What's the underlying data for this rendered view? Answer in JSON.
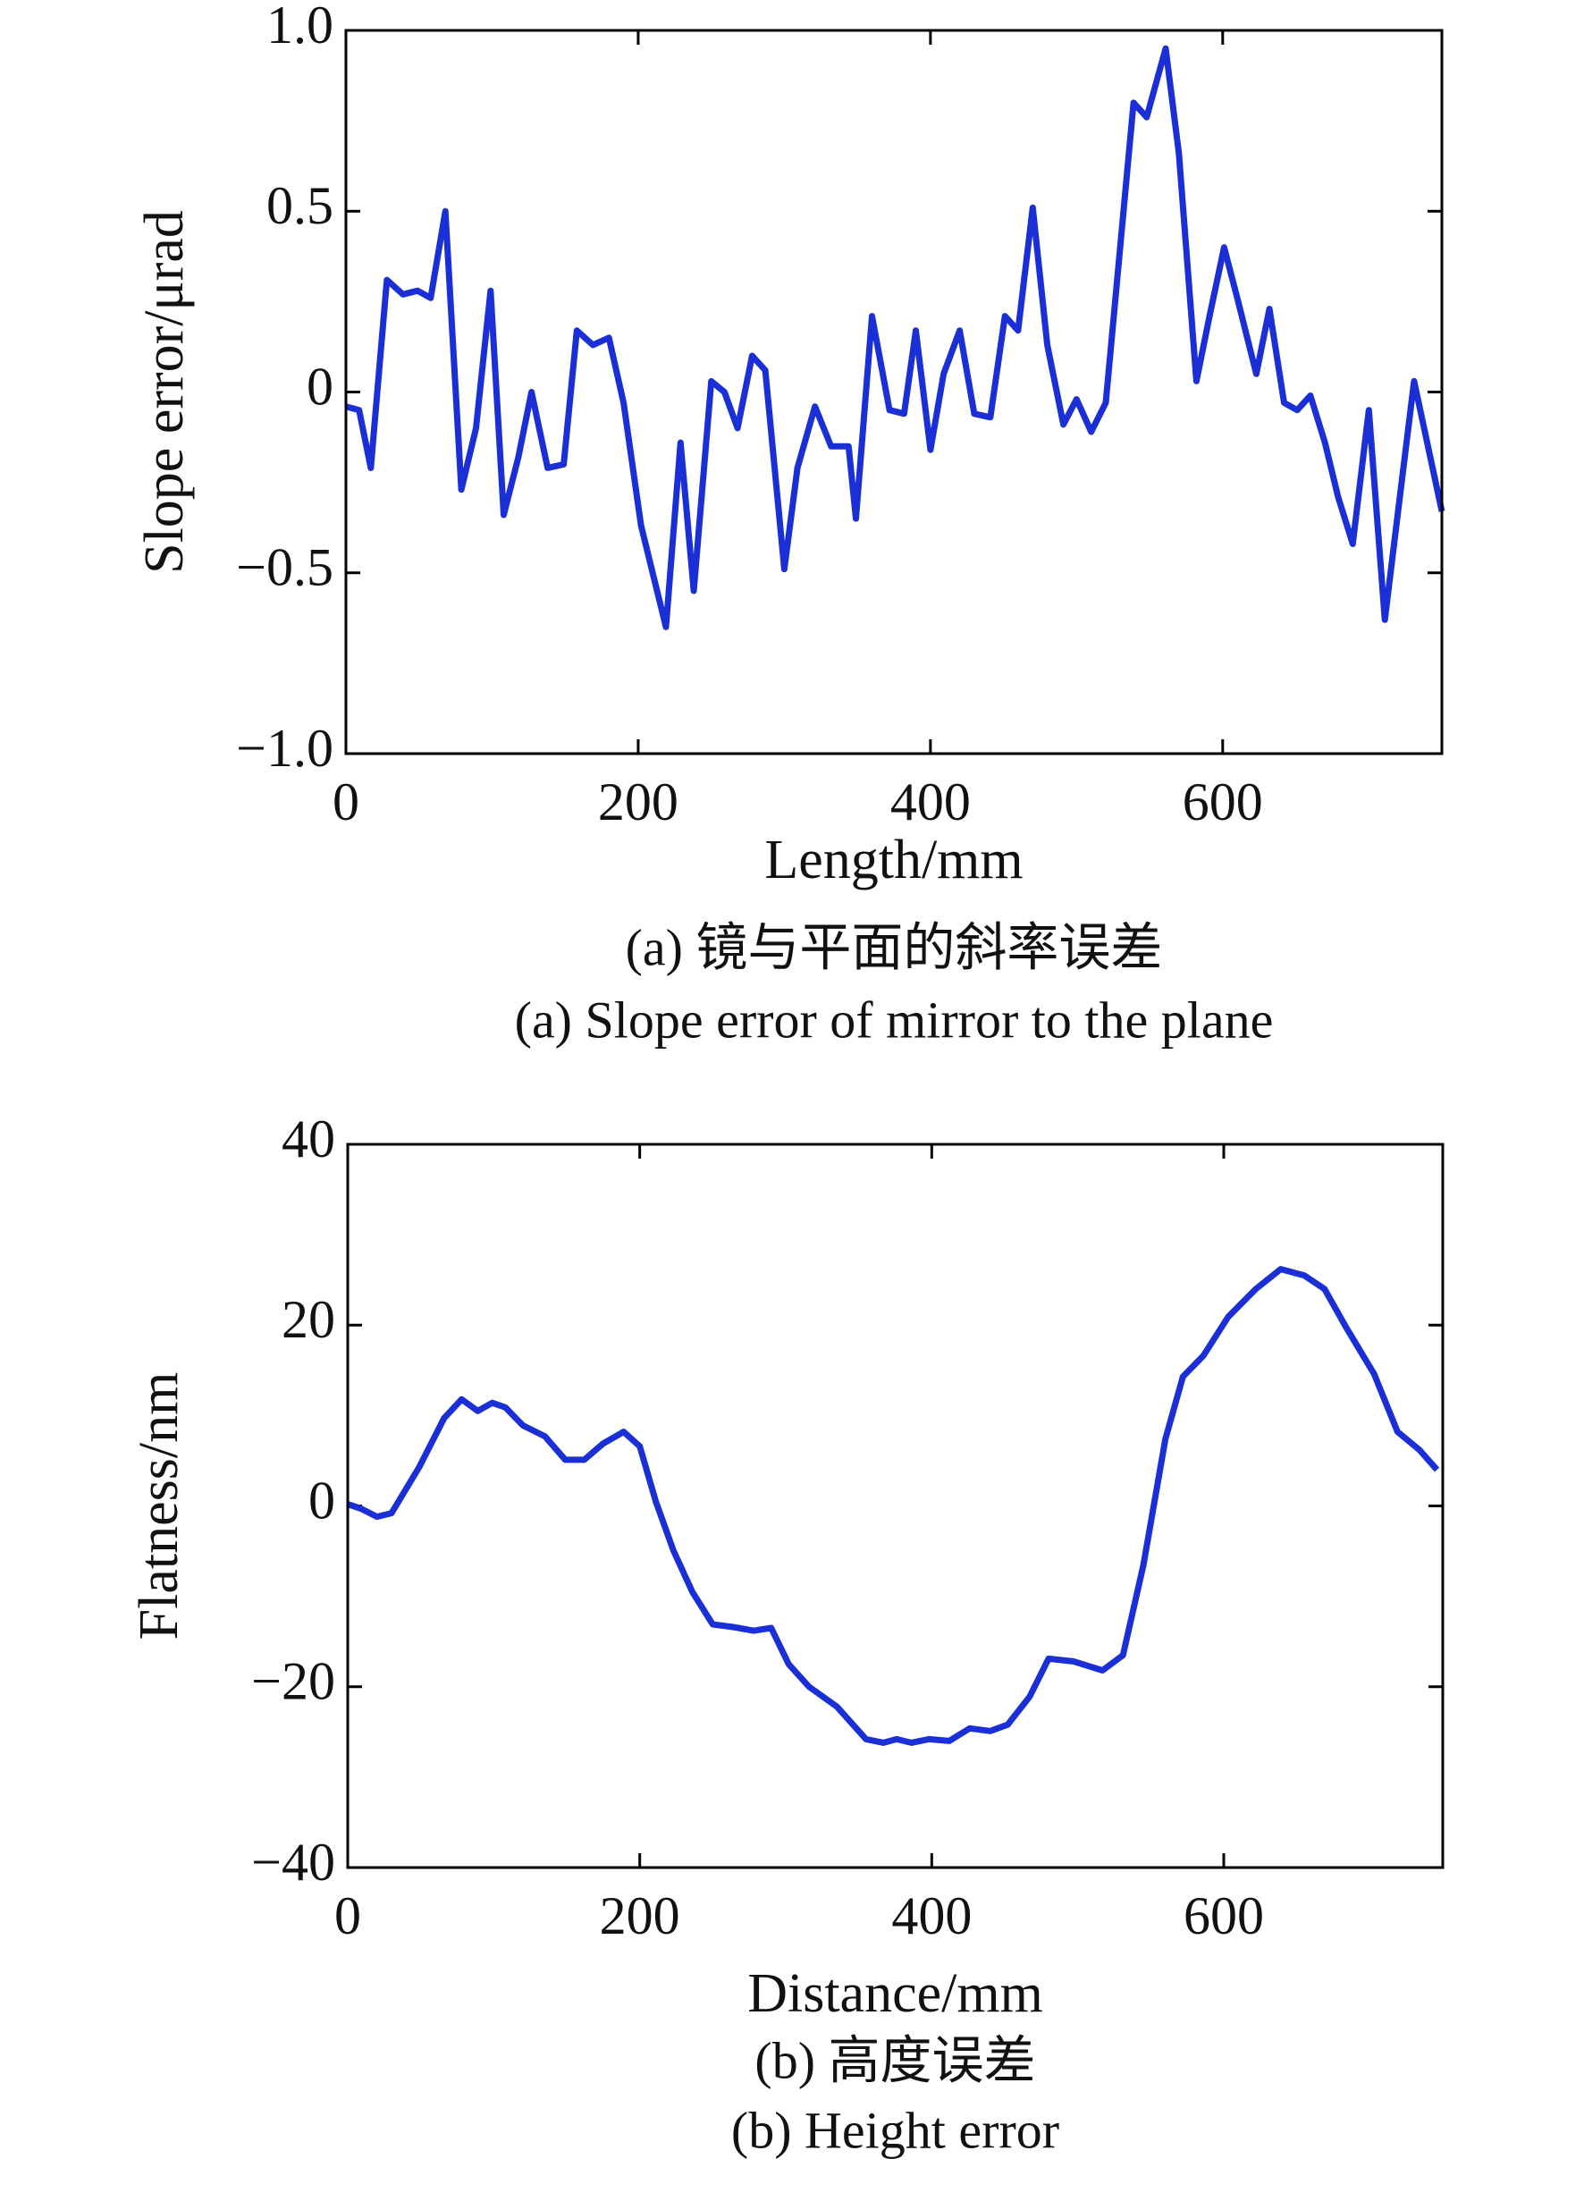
{
  "chart_data": [
    {
      "type": "line",
      "xlabel": "Length/mm",
      "ylabel": "Slope error/μrad",
      "captions": [
        "(a) 镜与平面的斜率误差",
        "(a) Slope error of mirror to the plane"
      ],
      "color": "#1a2fd6",
      "x": [
        0,
        9,
        17,
        28,
        39,
        49,
        58,
        68,
        79,
        89,
        99,
        108,
        118,
        127,
        138,
        149,
        158,
        169,
        180,
        190,
        202,
        219,
        229,
        238,
        250,
        259,
        268,
        278,
        287,
        300,
        309,
        321,
        332,
        344,
        349,
        360,
        372,
        382,
        390,
        400,
        409,
        420,
        430,
        441,
        451,
        460,
        470,
        480,
        491,
        500,
        510,
        520,
        539,
        548,
        561,
        570,
        582,
        591,
        601,
        610,
        623,
        632,
        642,
        651,
        660,
        670,
        679,
        689,
        700,
        711,
        720,
        731,
        741,
        750
      ],
      "values": [
        -0.04,
        -0.05,
        -0.21,
        0.31,
        0.27,
        0.28,
        0.26,
        0.5,
        -0.27,
        -0.1,
        0.28,
        -0.34,
        -0.18,
        0,
        -0.21,
        -0.2,
        0.17,
        0.13,
        0.15,
        -0.03,
        -0.37,
        -0.65,
        -0.14,
        -0.55,
        0.03,
        0,
        -0.1,
        0.1,
        0.06,
        -0.49,
        -0.21,
        -0.04,
        -0.15,
        -0.15,
        -0.35,
        0.21,
        -0.05,
        -0.06,
        0.17,
        -0.16,
        0.05,
        0.17,
        -0.06,
        -0.07,
        0.21,
        0.17,
        0.51,
        0.13,
        -0.09,
        -0.02,
        -0.11,
        -0.03,
        0.8,
        0.76,
        0.95,
        0.66,
        0.03,
        0.21,
        0.4,
        0.26,
        0.05,
        0.23,
        -0.03,
        -0.05,
        -0.01,
        -0.14,
        -0.29,
        -0.42,
        -0.05,
        -0.63,
        -0.33,
        0.03,
        -0.16,
        -0.33
      ],
      "xlim": [
        0,
        750
      ],
      "xticks": [
        0,
        200,
        400,
        600
      ],
      "ylim": [
        -1,
        1
      ],
      "yticks": [
        {
          "value": -1,
          "label": "−1.0"
        },
        {
          "value": -0.5,
          "label": "−0.5"
        },
        0,
        0.5,
        {
          "value": 1,
          "label": "1.0"
        }
      ]
    },
    {
      "type": "line",
      "xlabel": "Distance/mm",
      "ylabel": "Flatness/nm",
      "captions": [
        "(b) 高度误差",
        "(b) Height error"
      ],
      "color": "#1a2fd6",
      "x": [
        0,
        9,
        20,
        30,
        49,
        66,
        78,
        89,
        99,
        108,
        120,
        135,
        149,
        162,
        175,
        189,
        200,
        211,
        223,
        236,
        250,
        264,
        278,
        290,
        302,
        316,
        335,
        355,
        367,
        376,
        386,
        398,
        412,
        426,
        440,
        452,
        467,
        480,
        497,
        517,
        531,
        545,
        560,
        572,
        586,
        603,
        622,
        639,
        655,
        669,
        684,
        703,
        719,
        734,
        746
      ],
      "values": [
        0.2,
        -0.3,
        -1.2,
        -0.8,
        4.3,
        9.7,
        11.8,
        10.5,
        11.4,
        10.9,
        8.9,
        7.7,
        5.1,
        5.1,
        6.9,
        8.2,
        6.6,
        0.5,
        -4.9,
        -9.5,
        -13.1,
        -13.4,
        -13.8,
        -13.5,
        -17.5,
        -20,
        -22.2,
        -25.8,
        -26.2,
        -25.8,
        -26.2,
        -25.8,
        -26,
        -24.6,
        -24.9,
        -24.2,
        -21.1,
        -16.9,
        -17.2,
        -18.2,
        -16.5,
        -6.5,
        7.4,
        14.3,
        16.6,
        20.9,
        24,
        26.2,
        25.5,
        24,
        19.7,
        14.6,
        8.2,
        6.2,
        4
      ],
      "xlim": [
        0,
        750
      ],
      "xticks": [
        0,
        200,
        400,
        600
      ],
      "ylim": [
        -40,
        40
      ],
      "yticks": [
        {
          "value": -40,
          "label": "−40"
        },
        {
          "value": -20,
          "label": "−20"
        },
        0,
        20,
        40
      ]
    }
  ]
}
